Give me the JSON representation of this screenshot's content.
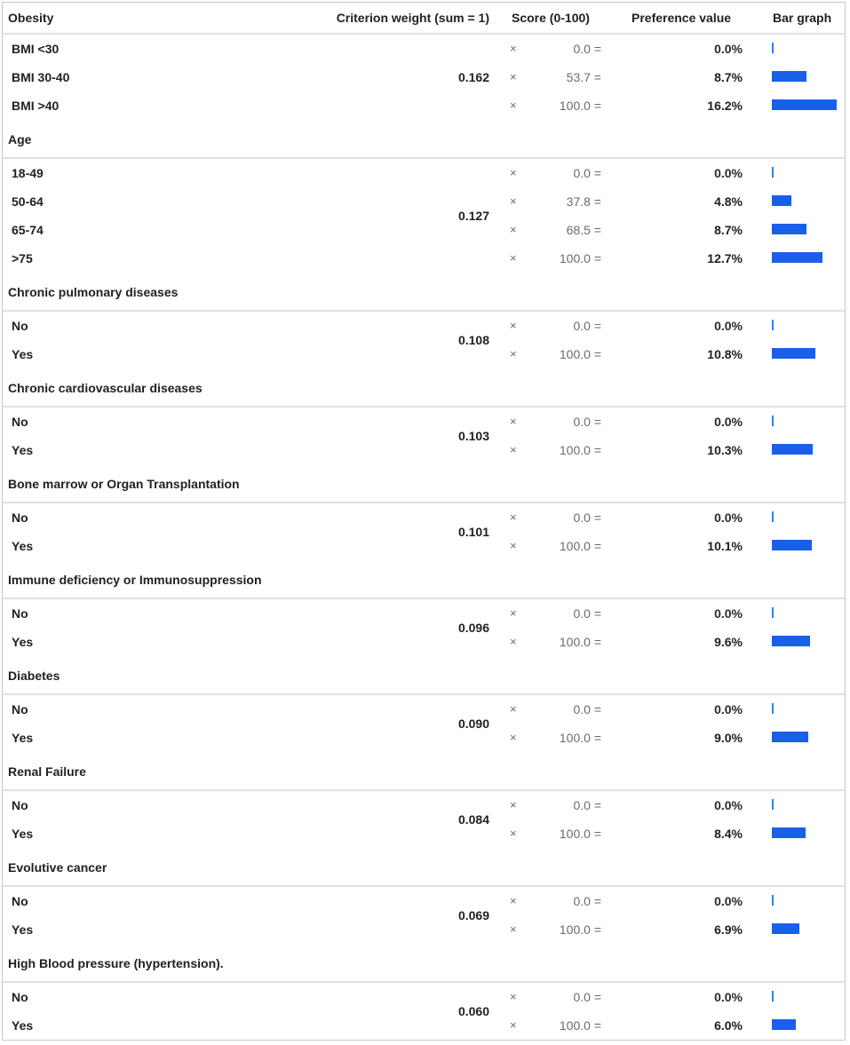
{
  "header": {
    "first_group": "Obesity",
    "weight_col": "Criterion weight (sum = 1)",
    "score_col": "Score (0-100)",
    "pref_col": "Preference value",
    "bar_col": "Bar graph"
  },
  "times_symbol": "×",
  "bar_color": "#1a5fe8",
  "groups": [
    {
      "title": "Obesity",
      "weight": "0.162",
      "rows": [
        {
          "label": "BMI <30",
          "score": "0.0 =",
          "pref": "0.0%",
          "value": 0.0
        },
        {
          "label": "BMI 30-40",
          "score": "53.7 =",
          "pref": "8.7%",
          "value": 8.7
        },
        {
          "label": "BMI >40",
          "score": "100.0 =",
          "pref": "16.2%",
          "value": 16.2
        }
      ]
    },
    {
      "title": "Age",
      "weight": "0.127",
      "rows": [
        {
          "label": "18-49",
          "score": "0.0 =",
          "pref": "0.0%",
          "value": 0.0
        },
        {
          "label": "50-64",
          "score": "37.8 =",
          "pref": "4.8%",
          "value": 4.8
        },
        {
          "label": "65-74",
          "score": "68.5 =",
          "pref": "8.7%",
          "value": 8.7
        },
        {
          "label": ">75",
          "score": "100.0 =",
          "pref": "12.7%",
          "value": 12.7
        }
      ]
    },
    {
      "title": "Chronic pulmonary diseases",
      "weight": "0.108",
      "rows": [
        {
          "label": "No",
          "score": "0.0 =",
          "pref": "0.0%",
          "value": 0.0
        },
        {
          "label": "Yes",
          "score": "100.0 =",
          "pref": "10.8%",
          "value": 10.8
        }
      ]
    },
    {
      "title": "Chronic cardiovascular diseases",
      "weight": "0.103",
      "rows": [
        {
          "label": "No",
          "score": "0.0 =",
          "pref": "0.0%",
          "value": 0.0
        },
        {
          "label": "Yes",
          "score": "100.0 =",
          "pref": "10.3%",
          "value": 10.3
        }
      ]
    },
    {
      "title": "Bone marrow or Organ Transplantation",
      "weight": "0.101",
      "rows": [
        {
          "label": "No",
          "score": "0.0 =",
          "pref": "0.0%",
          "value": 0.0
        },
        {
          "label": "Yes",
          "score": "100.0 =",
          "pref": "10.1%",
          "value": 10.1
        }
      ]
    },
    {
      "title": "Immune deficiency or Immunosuppression",
      "weight": "0.096",
      "rows": [
        {
          "label": "No",
          "score": "0.0 =",
          "pref": "0.0%",
          "value": 0.0
        },
        {
          "label": "Yes",
          "score": "100.0 =",
          "pref": "9.6%",
          "value": 9.6
        }
      ]
    },
    {
      "title": "Diabetes",
      "weight": "0.090",
      "rows": [
        {
          "label": "No",
          "score": "0.0 =",
          "pref": "0.0%",
          "value": 0.0
        },
        {
          "label": "Yes",
          "score": "100.0 =",
          "pref": "9.0%",
          "value": 9.0
        }
      ]
    },
    {
      "title": "Renal Failure",
      "weight": "0.084",
      "rows": [
        {
          "label": "No",
          "score": "0.0 =",
          "pref": "0.0%",
          "value": 0.0
        },
        {
          "label": "Yes",
          "score": "100.0 =",
          "pref": "8.4%",
          "value": 8.4
        }
      ]
    },
    {
      "title": "Evolutive cancer",
      "weight": "0.069",
      "rows": [
        {
          "label": "No",
          "score": "0.0 =",
          "pref": "0.0%",
          "value": 0.0
        },
        {
          "label": "Yes",
          "score": "100.0 =",
          "pref": "6.9%",
          "value": 6.9
        }
      ]
    },
    {
      "title": "High Blood pressure (hypertension).",
      "weight": "0.060",
      "rows": [
        {
          "label": "No",
          "score": "0.0 =",
          "pref": "0.0%",
          "value": 0.0
        },
        {
          "label": "Yes",
          "score": "100.0 =",
          "pref": "6.0%",
          "value": 6.0
        }
      ]
    }
  ]
}
